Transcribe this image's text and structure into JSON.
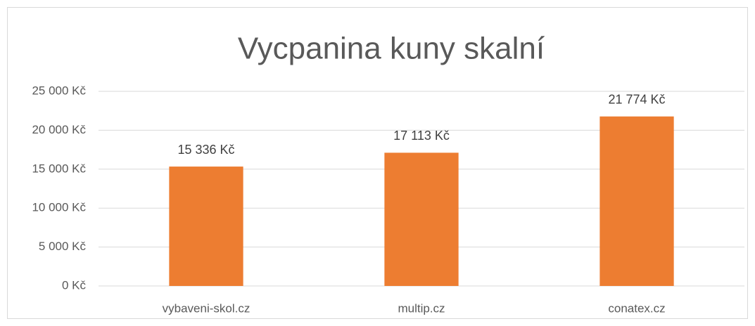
{
  "chart_data": {
    "type": "bar",
    "title": "Vycpanina kuny skalní",
    "categories": [
      "vybaveni-skol.cz",
      "multip.cz",
      "conatex.cz"
    ],
    "values": [
      15336,
      17113,
      21774
    ],
    "value_labels": [
      "15 336 Kč",
      "17 113 Kč",
      "21 774 Kč"
    ],
    "color": "#ed7d31",
    "ylim": [
      0,
      25000
    ],
    "yticks": [
      {
        "value": 0,
        "label": "0 Kč"
      },
      {
        "value": 5000,
        "label": "5 000 Kč"
      },
      {
        "value": 10000,
        "label": "10 000 Kč"
      },
      {
        "value": 15000,
        "label": "15 000 Kč"
      },
      {
        "value": 20000,
        "label": "20 000 Kč"
      },
      {
        "value": 25000,
        "label": "25 000 Kč"
      }
    ],
    "grid": true
  }
}
